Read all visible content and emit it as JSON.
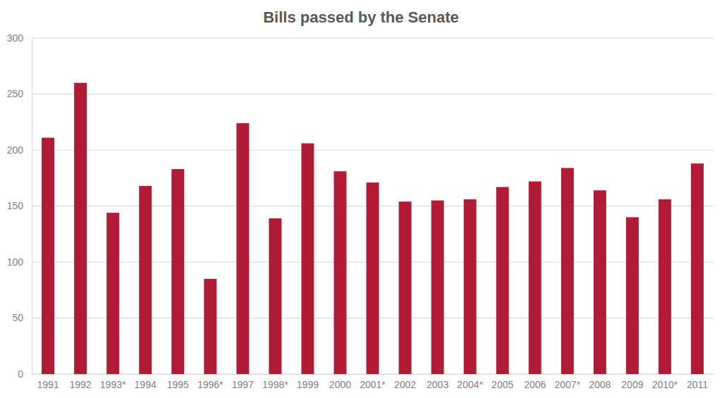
{
  "chart_data": {
    "type": "bar",
    "title": "Bills passed by the Senate",
    "categories": [
      "1991",
      "1992",
      "1993*",
      "1994",
      "1995",
      "1996*",
      "1997",
      "1998*",
      "1999",
      "2000",
      "2001*",
      "2002",
      "2003",
      "2004*",
      "2005",
      "2006",
      "2007*",
      "2008",
      "2009",
      "2010*",
      "2011"
    ],
    "values": [
      211,
      260,
      144,
      168,
      183,
      85,
      224,
      139,
      206,
      181,
      171,
      154,
      155,
      156,
      167,
      172,
      184,
      164,
      140,
      156,
      188
    ],
    "color": "#b01c35",
    "ylim": [
      0,
      300
    ],
    "yticks": [
      0,
      50,
      100,
      150,
      200,
      250,
      300
    ],
    "grid": true
  }
}
